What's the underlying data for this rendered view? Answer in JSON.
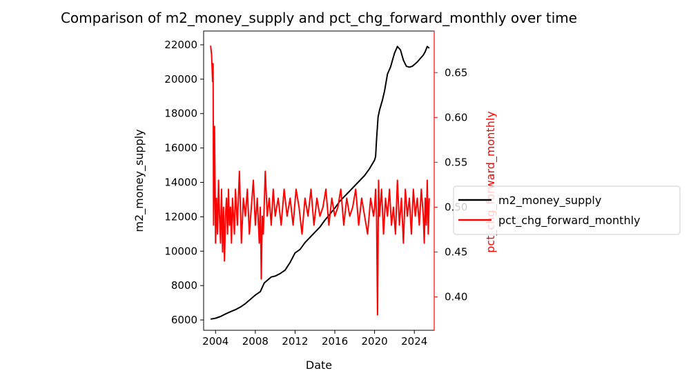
{
  "chart_data": {
    "type": "line",
    "title": "Comparison of m2_money_supply and pct_chg_forward_monthly over time",
    "xlabel": "Date",
    "ylabel_left": "m2_money_supply",
    "ylabel_right": "pct_chg_forward_monthly",
    "x_ticks": [
      "2004",
      "2008",
      "2012",
      "2016",
      "2020",
      "2024"
    ],
    "x_range": [
      2002.8,
      2026.0
    ],
    "y_left_ticks": [
      6000,
      8000,
      10000,
      12000,
      14000,
      16000,
      18000,
      20000,
      22000
    ],
    "y_left_range": [
      5400,
      22800
    ],
    "y_right_ticks": [
      "0.40",
      "0.45",
      "0.50",
      "0.55",
      "0.60",
      "0.65"
    ],
    "y_right_range": [
      0.3628,
      0.6963
    ],
    "legend_position": "right outside",
    "grid": false,
    "series": [
      {
        "name": "m2_money_supply",
        "axis": "left",
        "color": "#000000",
        "x": [
          2003.5,
          2004.0,
          2004.5,
          2005.0,
          2005.5,
          2006.0,
          2006.5,
          2007.0,
          2007.5,
          2008.0,
          2008.5,
          2008.9,
          2009.3,
          2009.6,
          2010.0,
          2010.5,
          2011.0,
          2011.5,
          2012.0,
          2012.5,
          2013.0,
          2013.5,
          2014.0,
          2014.5,
          2015.0,
          2015.5,
          2016.0,
          2016.5,
          2017.0,
          2017.5,
          2018.0,
          2018.5,
          2019.0,
          2019.5,
          2020.0,
          2020.1,
          2020.2,
          2020.35,
          2020.5,
          2020.8,
          2021.0,
          2021.3,
          2021.6,
          2022.0,
          2022.3,
          2022.6,
          2022.9,
          2023.2,
          2023.5,
          2023.8,
          2024.0,
          2024.3,
          2024.6,
          2024.9,
          2025.1,
          2025.3,
          2025.5
        ],
        "y": [
          6050,
          6100,
          6200,
          6350,
          6480,
          6600,
          6750,
          6950,
          7200,
          7450,
          7650,
          8150,
          8350,
          8500,
          8550,
          8700,
          8900,
          9350,
          9900,
          10100,
          10500,
          10800,
          11100,
          11400,
          11800,
          12150,
          12500,
          12900,
          13200,
          13500,
          13800,
          14100,
          14400,
          14800,
          15300,
          15500,
          16500,
          17800,
          18200,
          18800,
          19300,
          20300,
          20700,
          21500,
          21900,
          21700,
          21100,
          20750,
          20700,
          20750,
          20850,
          21000,
          21200,
          21400,
          21600,
          21900,
          21800
        ]
      },
      {
        "name": "pct_chg_forward_monthly",
        "axis": "right",
        "color": "#ff0000",
        "x": [
          2003.5,
          2003.6,
          2003.7,
          2003.75,
          2003.8,
          2003.9,
          2004.0,
          2004.1,
          2004.2,
          2004.3,
          2004.4,
          2004.5,
          2004.6,
          2004.7,
          2004.8,
          2004.9,
          2005.0,
          2005.1,
          2005.2,
          2005.3,
          2005.4,
          2005.5,
          2005.6,
          2005.7,
          2005.8,
          2005.9,
          2006.0,
          2006.2,
          2006.4,
          2006.6,
          2006.8,
          2007.0,
          2007.2,
          2007.4,
          2007.6,
          2007.8,
          2008.0,
          2008.2,
          2008.4,
          2008.5,
          2008.6,
          2008.7,
          2008.8,
          2009.0,
          2009.2,
          2009.4,
          2009.6,
          2009.8,
          2010.0,
          2010.3,
          2010.6,
          2010.9,
          2011.2,
          2011.5,
          2011.8,
          2012.1,
          2012.4,
          2012.7,
          2013.0,
          2013.3,
          2013.6,
          2013.9,
          2014.2,
          2014.5,
          2014.8,
          2015.1,
          2015.4,
          2015.7,
          2016.0,
          2016.3,
          2016.6,
          2016.9,
          2017.2,
          2017.5,
          2017.8,
          2018.1,
          2018.4,
          2018.7,
          2019.0,
          2019.3,
          2019.6,
          2019.9,
          2020.0,
          2020.1,
          2020.2,
          2020.3,
          2020.4,
          2020.5,
          2020.7,
          2020.9,
          2021.1,
          2021.3,
          2021.5,
          2021.7,
          2021.9,
          2022.1,
          2022.3,
          2022.5,
          2022.7,
          2022.9,
          2023.1,
          2023.3,
          2023.5,
          2023.7,
          2023.9,
          2024.1,
          2024.3,
          2024.5,
          2024.7,
          2024.9,
          2025.0,
          2025.1,
          2025.2,
          2025.3,
          2025.4,
          2025.5
        ],
        "y": [
          0.68,
          0.67,
          0.64,
          0.66,
          0.48,
          0.59,
          0.46,
          0.51,
          0.47,
          0.53,
          0.49,
          0.46,
          0.52,
          0.45,
          0.5,
          0.44,
          0.49,
          0.51,
          0.47,
          0.52,
          0.48,
          0.5,
          0.46,
          0.51,
          0.49,
          0.47,
          0.52,
          0.48,
          0.54,
          0.46,
          0.51,
          0.49,
          0.52,
          0.47,
          0.5,
          0.53,
          0.48,
          0.51,
          0.46,
          0.5,
          0.42,
          0.49,
          0.47,
          0.54,
          0.49,
          0.51,
          0.48,
          0.52,
          0.49,
          0.51,
          0.48,
          0.52,
          0.49,
          0.51,
          0.48,
          0.52,
          0.5,
          0.47,
          0.51,
          0.49,
          0.52,
          0.48,
          0.51,
          0.49,
          0.5,
          0.52,
          0.48,
          0.51,
          0.49,
          0.5,
          0.52,
          0.48,
          0.51,
          0.49,
          0.5,
          0.52,
          0.48,
          0.51,
          0.49,
          0.47,
          0.51,
          0.49,
          0.5,
          0.52,
          0.49,
          0.38,
          0.53,
          0.49,
          0.52,
          0.47,
          0.51,
          0.49,
          0.52,
          0.48,
          0.5,
          0.47,
          0.53,
          0.48,
          0.51,
          0.46,
          0.52,
          0.49,
          0.51,
          0.47,
          0.52,
          0.49,
          0.51,
          0.48,
          0.52,
          0.49,
          0.46,
          0.51,
          0.48,
          0.53,
          0.47,
          0.51
        ]
      }
    ]
  }
}
